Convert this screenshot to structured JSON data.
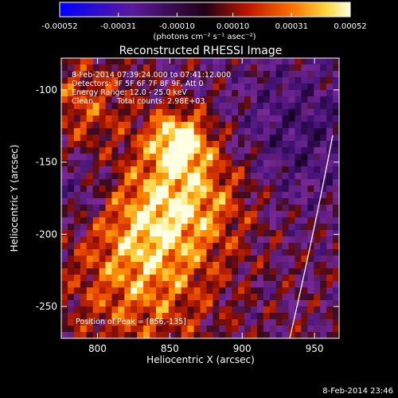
{
  "chart_data": {
    "type": "heatmap",
    "title": "Reconstructed RHESSI Image",
    "xlabel": "Heliocentric X (arcsec)",
    "ylabel": "Heliocentric Y (arcsec)",
    "xlim": [
      775,
      967
    ],
    "ylim": [
      -272,
      -78
    ],
    "x_ticks": [
      800,
      850,
      900,
      950
    ],
    "y_ticks": [
      -250,
      -200,
      -150,
      -100
    ],
    "colorbar": {
      "ticks": [
        "-0.00052",
        "-0.00031",
        "-0.00010",
        "0.00010",
        "0.00031",
        "0.00052"
      ],
      "range": [
        -0.00052,
        0.00052
      ],
      "unit_label": "(photons cm⁻² s⁻¹ asec⁻²)"
    },
    "annotations": [
      "8-Feb-2014 07:39:24.000 to 07:41:12.000",
      "Detectors: 3F 5F 6F 7F 8F 9F, Att 0",
      "Energy Range: 12.0 - 25.0 keV",
      "Clean",
      "Total counts: 2.98E+03",
      "Position of Peak = [856,-135]"
    ],
    "peak": [
      856,
      -135
    ],
    "timestamp": "8-Feb-2014 23:46",
    "grid": false
  }
}
